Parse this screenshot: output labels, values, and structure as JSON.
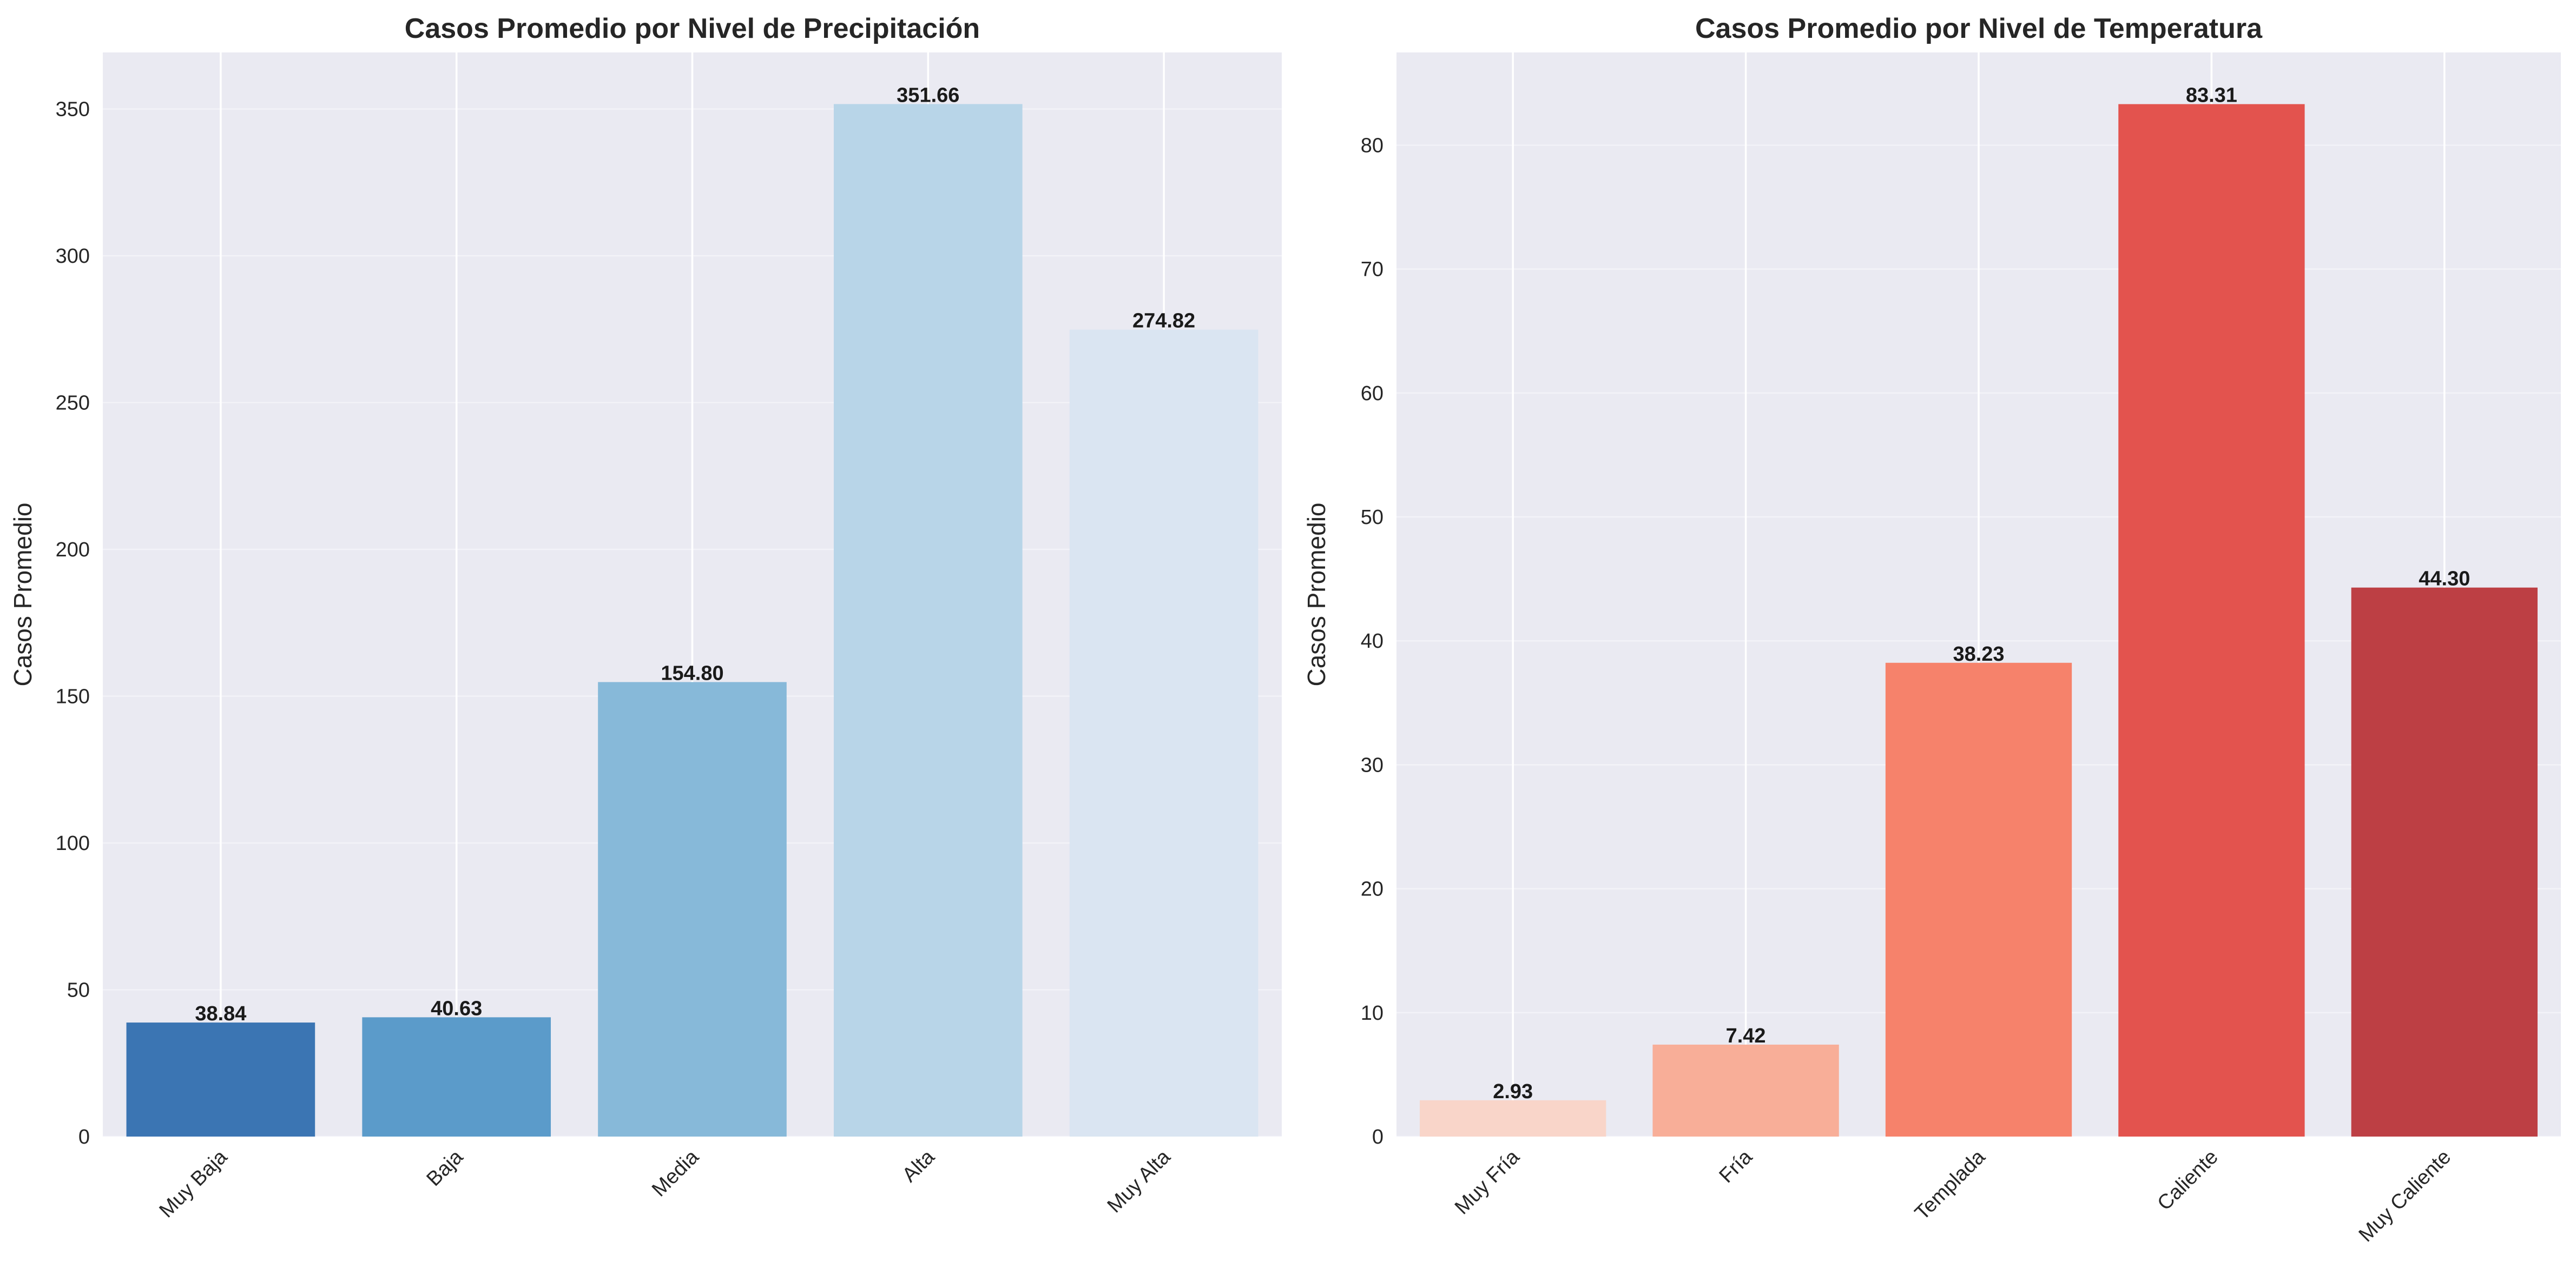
{
  "chart_data": [
    {
      "type": "bar",
      "title": "Casos Promedio por Nivel de Precipitación",
      "xlabel": "",
      "ylabel": "Casos Promedio",
      "categories": [
        "Muy Baja",
        "Baja",
        "Media",
        "Alta",
        "Muy Alta"
      ],
      "values": [
        38.84,
        40.63,
        154.8,
        351.66,
        274.82
      ],
      "value_labels": [
        "38.84",
        "40.63",
        "154.80",
        "351.66",
        "274.82"
      ],
      "bar_colors": [
        "#3b75b3",
        "#5b9bca",
        "#87b9d9",
        "#b8d5e8",
        "#dae5f2"
      ],
      "ylim": [
        0,
        369.24
      ],
      "yticks": [
        0,
        50,
        100,
        150,
        200,
        250,
        300,
        350
      ],
      "ytick_labels": [
        "0",
        "50",
        "100",
        "150",
        "200",
        "250",
        "300",
        "350"
      ],
      "grid": true,
      "legend": "none"
    },
    {
      "type": "bar",
      "title": "Casos Promedio por Nivel de Temperatura",
      "xlabel": "",
      "ylabel": "Casos Promedio",
      "categories": [
        "Muy Fría",
        "Fría",
        "Templada",
        "Caliente",
        "Muy Caliente"
      ],
      "values": [
        2.93,
        7.42,
        38.23,
        83.31,
        44.3
      ],
      "value_labels": [
        "2.93",
        "7.42",
        "38.23",
        "83.31",
        "44.30"
      ],
      "bar_colors": [
        "#f9d5c9",
        "#f8ae98",
        "#f6826b",
        "#e3534e",
        "#bd3f44"
      ],
      "ylim": [
        0,
        87.48
      ],
      "yticks": [
        0,
        10,
        20,
        30,
        40,
        50,
        60,
        70,
        80
      ],
      "ytick_labels": [
        "0",
        "10",
        "20",
        "30",
        "40",
        "50",
        "60",
        "70",
        "80"
      ],
      "grid": true,
      "legend": "none"
    }
  ],
  "style": {
    "plot_background": "#eaeaf2",
    "grid_color": "#ffffff"
  }
}
